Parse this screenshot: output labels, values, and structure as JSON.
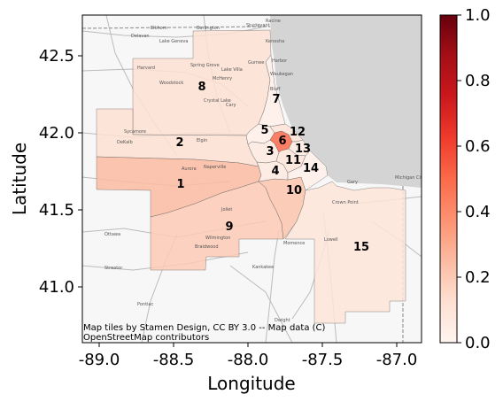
{
  "map": {
    "xlabel": "Longitude",
    "ylabel": "Latitude",
    "x_ticks": [
      "-89.0",
      "-88.5",
      "-88.0",
      "-87.5",
      "-87.0"
    ],
    "y_ticks": [
      "42.5",
      "42.0",
      "41.5",
      "41.0"
    ],
    "attribution_line1": "Map tiles by Stamen Design, CC BY 3.0 -- Map data (C)",
    "attribution_line2": "OpenStreetMap contributors",
    "colorbar_ticks": [
      "0.0",
      "0.2",
      "0.4",
      "0.6",
      "0.8",
      "1.0"
    ],
    "colors": {
      "lake": "#d4d4d4",
      "cmap_low": "#fff5f0",
      "cmap_high": "#67000d"
    },
    "regions": [
      {
        "id": "1",
        "label": "1",
        "value": 0.28
      },
      {
        "id": "2",
        "label": "2",
        "value": 0.12
      },
      {
        "id": "3",
        "label": "3",
        "value": 0.06
      },
      {
        "id": "4",
        "label": "4",
        "value": 0.05
      },
      {
        "id": "5",
        "label": "5",
        "value": 0.04
      },
      {
        "id": "6",
        "label": "6",
        "value": 0.5
      },
      {
        "id": "7",
        "label": "7",
        "value": 0.04
      },
      {
        "id": "8",
        "label": "8",
        "value": 0.12
      },
      {
        "id": "9",
        "label": "9",
        "value": 0.2
      },
      {
        "id": "10",
        "label": "10",
        "value": 0.2
      },
      {
        "id": "11",
        "label": "11",
        "value": 0.08
      },
      {
        "id": "12",
        "label": "12",
        "value": 0.1
      },
      {
        "id": "13",
        "label": "13",
        "value": 0.05
      },
      {
        "id": "14",
        "label": "14",
        "value": 0.04
      },
      {
        "id": "15",
        "label": "15",
        "value": 0.1
      }
    ],
    "basemap_places": [
      "Elkhorn",
      "Burlington",
      "Sturtevant",
      "Racine",
      "Delavan",
      "Lake Geneva",
      "Kenosha",
      "Harvard",
      "Spring Grove",
      "Harbor",
      "McHenry",
      "Waukegan",
      "Gurnee",
      "Lake Villa",
      "Woodstock",
      "Crystal Lake",
      "Bluff",
      "Cary",
      "Sycamore",
      "DeKalb",
      "Elgin",
      "Aurora",
      "Naperville",
      "Joliet",
      "Ottawa",
      "Streator",
      "Kankakee",
      "Pontiac",
      "Gary",
      "Michigan City",
      "Crown Point",
      "Lowell",
      "Momence",
      "Wilmington",
      "Braidwood",
      "Dwight"
    ]
  }
}
